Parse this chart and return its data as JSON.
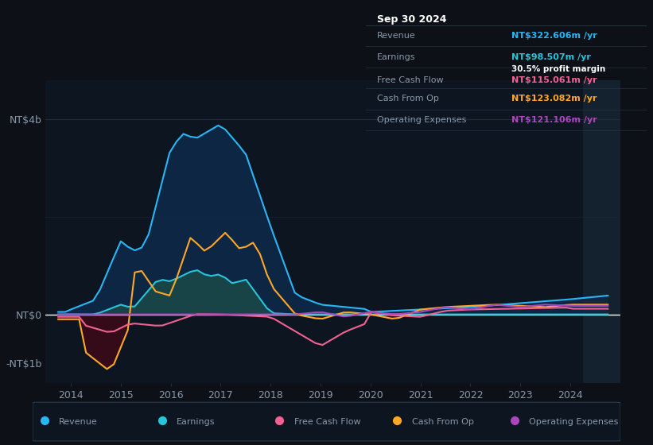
{
  "bg_color": "#0d1117",
  "plot_bg_color": "#0d1520",
  "zero_line_color": "#ffffff",
  "grid_color": "#1e2d3d",
  "text_color": "#8899aa",
  "title_color": "#ffffff",
  "yticks": [
    "NT$4b",
    "NT$0",
    "-NT$1b"
  ],
  "ytick_values": [
    4000,
    0,
    -1000
  ],
  "ylim": [
    -1400,
    4800
  ],
  "xlim_start": 2013.5,
  "xlim_end": 2025.0,
  "xtick_years": [
    2014,
    2015,
    2016,
    2017,
    2018,
    2019,
    2020,
    2021,
    2022,
    2023,
    2024
  ],
  "colors": {
    "revenue": "#29b6f6",
    "earnings": "#26c6da",
    "earnings_fill": "#1a4a4a",
    "revenue_fill": "#0d2a4a",
    "free_cash_flow": "#f06292",
    "cash_from_op": "#ffa726",
    "operating_expenses": "#ab47bc"
  },
  "legend_items": [
    "Revenue",
    "Earnings",
    "Free Cash Flow",
    "Cash From Op",
    "Operating Expenses"
  ],
  "legend_colors": [
    "#29b6f6",
    "#26c6da",
    "#f06292",
    "#ffa726",
    "#ab47bc"
  ],
  "info_box": {
    "date": "Sep 30 2024",
    "revenue_label": "Revenue",
    "revenue_value": "NT$322.606m",
    "revenue_color": "#29b6f6",
    "earnings_label": "Earnings",
    "earnings_value": "NT$98.507m",
    "earnings_color": "#26c6da",
    "profit_margin": "30.5% profit margin",
    "fcf_label": "Free Cash Flow",
    "fcf_value": "NT$115.061m",
    "fcf_color": "#f06292",
    "cashop_label": "Cash From Op",
    "cashop_value": "NT$123.082m",
    "cashop_color": "#ffa726",
    "opex_label": "Operating Expenses",
    "opex_value": "NT$121.106m",
    "opex_color": "#ab47bc"
  },
  "shaded_right_x": 2024.25
}
